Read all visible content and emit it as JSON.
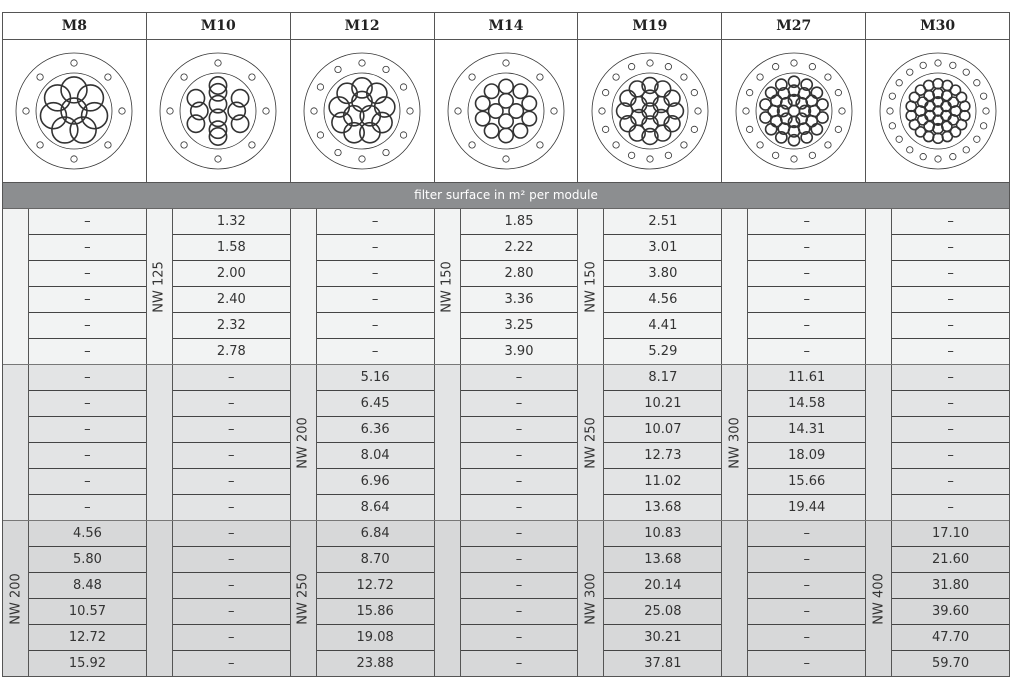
{
  "band_label": "filter surface in m² per module",
  "columns": [
    {
      "name": "M8",
      "sections": [
        {
          "label": "",
          "values": [
            "–",
            "–",
            "–",
            "–",
            "–",
            "–"
          ]
        },
        {
          "label": "",
          "values": [
            "–",
            "–",
            "–",
            "–",
            "–",
            "–"
          ]
        },
        {
          "label": "NW 200",
          "values": [
            "4.56",
            "5.80",
            "8.48",
            "10.57",
            "12.72",
            "15.92"
          ]
        }
      ]
    },
    {
      "name": "M10",
      "sections": [
        {
          "label": "NW 125",
          "values": [
            "1.32",
            "1.58",
            "2.00",
            "2.40",
            "2.32",
            "2.78"
          ]
        },
        {
          "label": "",
          "values": [
            "–",
            "–",
            "–",
            "–",
            "–",
            "–"
          ]
        },
        {
          "label": "",
          "values": [
            "–",
            "–",
            "–",
            "–",
            "–",
            "–"
          ]
        }
      ]
    },
    {
      "name": "M12",
      "sections": [
        {
          "label": "",
          "values": [
            "–",
            "–",
            "–",
            "–",
            "–",
            "–"
          ]
        },
        {
          "label": "NW 200",
          "values": [
            "5.16",
            "6.45",
            "6.36",
            "8.04",
            "6.96",
            "8.64"
          ]
        },
        {
          "label": "NW 250",
          "values": [
            "6.84",
            "8.70",
            "12.72",
            "15.86",
            "19.08",
            "23.88"
          ]
        }
      ]
    },
    {
      "name": "M14",
      "sections": [
        {
          "label": "NW 150",
          "values": [
            "1.85",
            "2.22",
            "2.80",
            "3.36",
            "3.25",
            "3.90"
          ]
        },
        {
          "label": "",
          "values": [
            "–",
            "–",
            "–",
            "–",
            "–",
            "–"
          ]
        },
        {
          "label": "",
          "values": [
            "–",
            "–",
            "–",
            "–",
            "–",
            "–"
          ]
        }
      ]
    },
    {
      "name": "M19",
      "sections": [
        {
          "label": "NW 150",
          "values": [
            "2.51",
            "3.01",
            "3.80",
            "4.56",
            "4.41",
            "5.29"
          ]
        },
        {
          "label": "NW 250",
          "values": [
            "8.17",
            "10.21",
            "10.07",
            "12.73",
            "11.02",
            "13.68"
          ]
        },
        {
          "label": "NW 300",
          "values": [
            "10.83",
            "13.68",
            "20.14",
            "25.08",
            "30.21",
            "37.81"
          ]
        }
      ]
    },
    {
      "name": "M27",
      "sections": [
        {
          "label": "",
          "values": [
            "–",
            "–",
            "–",
            "–",
            "–",
            "–"
          ]
        },
        {
          "label": "NW 300",
          "values": [
            "11.61",
            "14.58",
            "14.31",
            "18.09",
            "15.66",
            "19.44"
          ]
        },
        {
          "label": "",
          "values": [
            "–",
            "–",
            "–",
            "–",
            "–",
            "–"
          ]
        }
      ]
    },
    {
      "name": "M30",
      "sections": [
        {
          "label": "",
          "values": [
            "–",
            "–",
            "–",
            "–",
            "–",
            "–"
          ]
        },
        {
          "label": "",
          "values": [
            "–",
            "–",
            "–",
            "–",
            "–",
            "–"
          ]
        },
        {
          "label": "NW 400",
          "values": [
            "17.10",
            "21.60",
            "31.80",
            "39.60",
            "47.70",
            "59.70"
          ]
        }
      ]
    }
  ],
  "colors": {
    "band": "#8c8e90",
    "section_1": "#f2f3f3",
    "section_2": "#e3e4e5",
    "section_3": "#d7d8d9"
  }
}
